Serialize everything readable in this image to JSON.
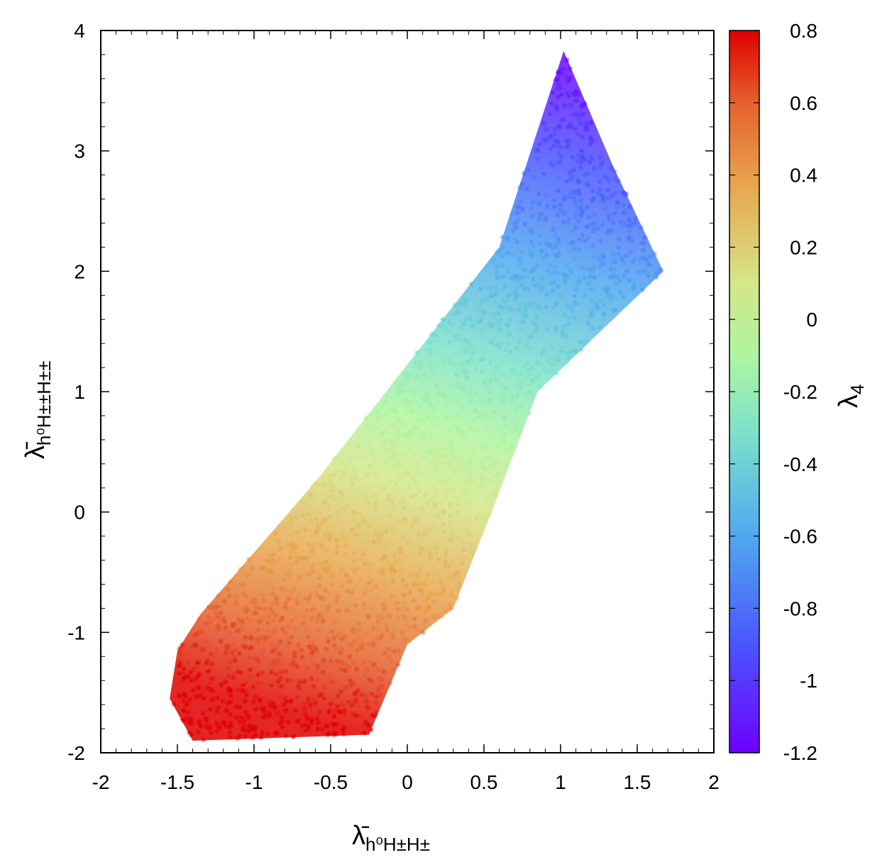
{
  "chart_data": {
    "type": "scatter",
    "marker": "asterisk",
    "x_axis": {
      "label_main": "λ̄",
      "label_sub": "h⁰H±H±",
      "range": [
        -2,
        2
      ],
      "ticks": [
        -2,
        -1.5,
        -1,
        -0.5,
        0,
        0.5,
        1,
        1.5,
        2
      ],
      "tick_labels": [
        "-2",
        "-1.5",
        "-1",
        "-0.5",
        "0",
        "0.5",
        "1",
        "1.5",
        "2"
      ]
    },
    "y_axis": {
      "label_main": "λ̄",
      "label_sub": "h⁰H±±H±±",
      "range": [
        -2,
        4
      ],
      "ticks": [
        -2,
        -1,
        0,
        1,
        2,
        3,
        4
      ],
      "tick_labels": [
        "-2",
        "-1",
        "0",
        "1",
        "2",
        "3",
        "4"
      ]
    },
    "colorbar": {
      "label_main": "λ",
      "label_sub": "4",
      "range": [
        -1.2,
        0.8
      ],
      "ticks": [
        -1.2,
        -1,
        -0.8,
        -0.6,
        -0.4,
        -0.2,
        0,
        0.2,
        0.4,
        0.6,
        0.8
      ],
      "tick_labels": [
        "-1.2",
        "-1",
        "-0.8",
        "-0.6",
        "-0.4",
        "-0.2",
        "0",
        "0.2",
        "0.4",
        "0.6",
        "0.8"
      ],
      "colormap": "rainbow"
    },
    "region_outline": [
      [
        -1.55,
        -1.55
      ],
      [
        -1.5,
        -1.15
      ],
      [
        -1.35,
        -0.85
      ],
      [
        -0.6,
        0.25
      ],
      [
        0.6,
        2.2
      ],
      [
        1.02,
        3.83
      ],
      [
        1.35,
        2.85
      ],
      [
        1.67,
        2.0
      ],
      [
        0.85,
        1.0
      ],
      [
        0.55,
        0.0
      ],
      [
        0.3,
        -0.8
      ],
      [
        0.0,
        -1.1
      ],
      [
        -0.25,
        -1.85
      ],
      [
        -1.4,
        -1.9
      ]
    ],
    "gradient": {
      "description_free": true,
      "low_end": [
        1.02,
        3.83
      ],
      "low_value": -1.2,
      "high_end": [
        -0.25,
        -1.85
      ],
      "high_value": 0.8
    },
    "grid": false,
    "legend": "none"
  }
}
